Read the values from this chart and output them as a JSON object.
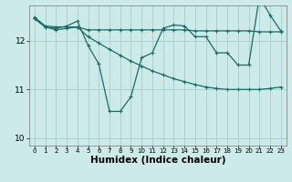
{
  "background_color": "#cceae7",
  "grid_color": "#aacccc",
  "line_color": "#1a6b6b",
  "xlabel": "Humidex (Indice chaleur)",
  "xlabel_fontsize": 7.5,
  "xlim": [
    -0.5,
    23.5
  ],
  "ylim": [
    9.85,
    12.72
  ],
  "yticks": [
    10,
    11,
    12
  ],
  "ytick_labels": [
    "10",
    "11",
    "12"
  ],
  "xtick_labels": [
    "0",
    "1",
    "2",
    "3",
    "4",
    "5",
    "6",
    "7",
    "8",
    "9",
    "10",
    "11",
    "12",
    "13",
    "14",
    "15",
    "16",
    "17",
    "18",
    "19",
    "20",
    "21",
    "22",
    "23"
  ],
  "series1_x": [
    0,
    1,
    2,
    3,
    4,
    5,
    6,
    7,
    8,
    9,
    10,
    11,
    12,
    13,
    14,
    15,
    16,
    17,
    18,
    19,
    20,
    21,
    22,
    23
  ],
  "series1_y": [
    12.48,
    12.3,
    12.28,
    12.28,
    12.28,
    12.22,
    12.22,
    12.22,
    12.22,
    12.22,
    12.22,
    12.22,
    12.22,
    12.22,
    12.22,
    12.2,
    12.2,
    12.2,
    12.2,
    12.2,
    12.2,
    12.18,
    12.18,
    12.18
  ],
  "series2_x": [
    0,
    1,
    2,
    3,
    4,
    5,
    6,
    7,
    8,
    9,
    10,
    11,
    12,
    13,
    14,
    15,
    16,
    17,
    18,
    19,
    20,
    21,
    22,
    23
  ],
  "series2_y": [
    12.45,
    12.28,
    12.25,
    12.3,
    12.4,
    11.9,
    11.52,
    10.55,
    10.55,
    10.85,
    11.65,
    11.75,
    12.25,
    12.32,
    12.3,
    12.08,
    12.08,
    11.75,
    11.75,
    11.5,
    11.5,
    12.9,
    12.52,
    12.2
  ],
  "series3_x": [
    0,
    1,
    2,
    3,
    4,
    5,
    6,
    7,
    8,
    9,
    10,
    11,
    12,
    13,
    14,
    15,
    16,
    17,
    18,
    19,
    20,
    21,
    22,
    23
  ],
  "series3_y": [
    12.45,
    12.28,
    12.22,
    12.25,
    12.28,
    12.08,
    11.95,
    11.82,
    11.7,
    11.58,
    11.48,
    11.38,
    11.3,
    11.22,
    11.16,
    11.1,
    11.05,
    11.02,
    11.0,
    11.0,
    11.0,
    11.0,
    11.02,
    11.05
  ]
}
